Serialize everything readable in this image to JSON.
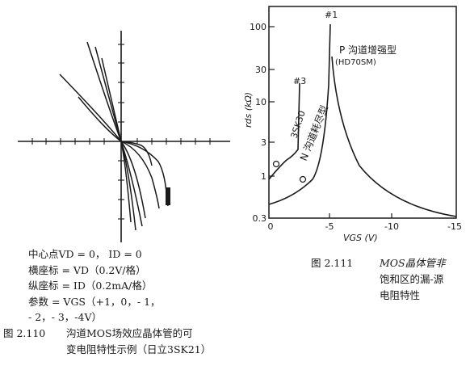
{
  "figure_left": {
    "params": [
      "中心点VD = 0， ID = 0",
      "横座标 = VD（0.2V/格）",
      "纵座标 = ID（0.2mA/格）",
      "参数 = VGS（+1，0，- 1，",
      "- 2，- 3，-4V）"
    ],
    "caption_number": "图 2.110",
    "caption_lines": [
      "沟道MOS场效应晶体管的可",
      "变电阻特性示例（日立3SK21）"
    ]
  },
  "figure_right": {
    "y_axis_label": "rds (kΩ)",
    "x_axis_label": "VGS (V)",
    "y_ticks": [
      "100",
      "30",
      "10",
      "3",
      "1",
      "0.3"
    ],
    "x_ticks": [
      "0",
      "-5",
      "-10",
      "-15"
    ],
    "curve_labels": {
      "c1": "#1",
      "c2": "P 沟道增强型",
      "c2_model": "(HD70SM)",
      "c3": "#3",
      "c3_model": "3SK30",
      "c3_type": "N 沟道耗尽型"
    },
    "caption_number": "图 2.111",
    "caption_lines": [
      "MOS晶体管非",
      "饱和区的漏-源",
      "电阻特性"
    ]
  },
  "colors": {
    "ink": "#1a1a1a",
    "paper": "#ffffff"
  }
}
